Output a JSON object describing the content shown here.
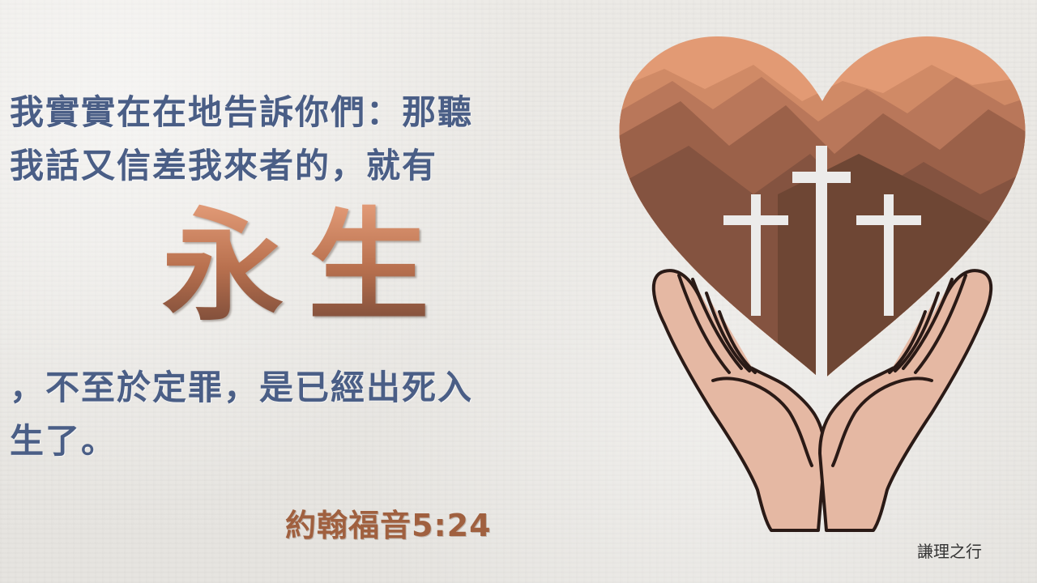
{
  "verse": {
    "lines_top": [
      "我實實在在地告訴你們：那聽",
      "我話又信差我來者的，就有"
    ],
    "highlight": "永生",
    "lines_bottom": [
      "，不至於定罪，是已經出死入",
      "生了。"
    ]
  },
  "reference": "約翰福音5:24",
  "signature": "謙理之行",
  "icons": [
    "heart-with-mountains-icon",
    "three-crosses-icon",
    "open-hands-icon"
  ],
  "colors": {
    "verse_text": "#4a5e86",
    "highlight_top": "#e8a17d",
    "highlight_bottom": "#6f4434",
    "reference_text": "#a0603f",
    "heart_light": "#e29a74",
    "heart_dark": "#6e4634",
    "hands_fill": "#e5b8a3",
    "hands_outline": "#2a1a16"
  }
}
